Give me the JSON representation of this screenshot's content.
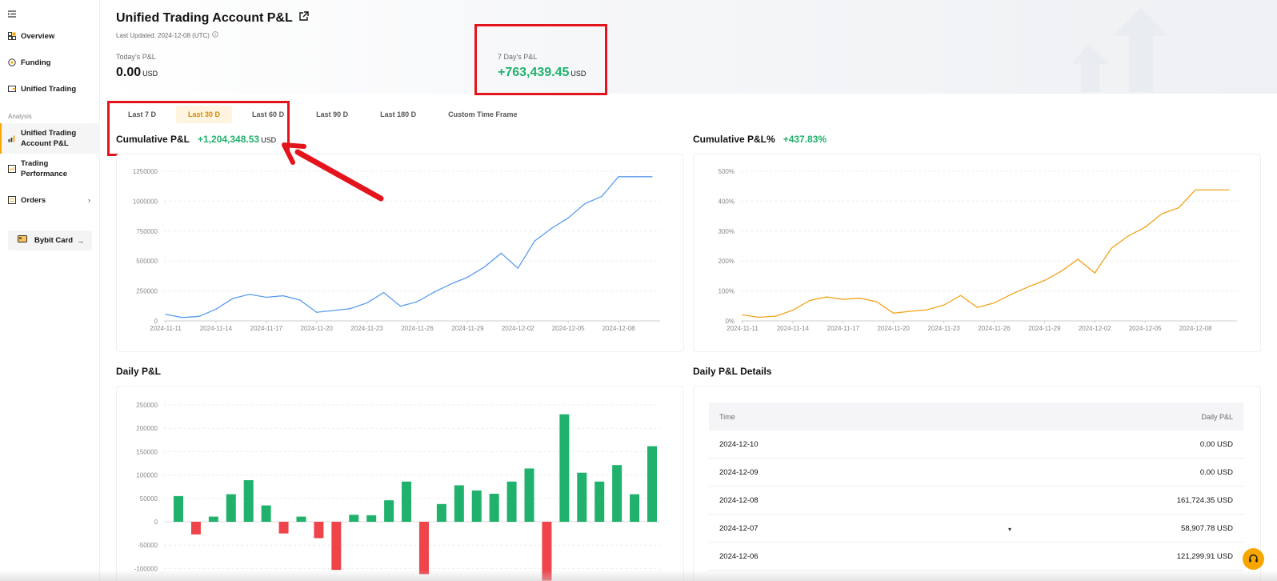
{
  "sidebar": {
    "items": [
      {
        "label": "Overview",
        "icon": "overview-icon"
      },
      {
        "label": "Funding",
        "icon": "coin-icon"
      },
      {
        "label": "Unified Trading",
        "icon": "wallet-icon"
      }
    ],
    "section_label": "Analysis",
    "analysis_items": [
      {
        "label_line1": "Unified Trading",
        "label_line2": "Account P&L",
        "icon": "bar-chart-icon",
        "active": true
      },
      {
        "label_line1": "Trading",
        "label_line2": "Performance",
        "icon": "performance-icon"
      },
      {
        "label_line1": "Orders",
        "label_line2": "",
        "icon": "orders-icon"
      }
    ],
    "card_label": "Bybit Card"
  },
  "header": {
    "title": "Unified Trading Account P&L",
    "last_updated": "Last Updated: 2024-12-08 (UTC)",
    "today_label": "Today's P&L",
    "today_value": "0.00",
    "today_unit": "USD",
    "week_label": "7 Day's P&L",
    "week_value": "+763,439.45",
    "week_unit": "USD"
  },
  "tabs": [
    "Last 7 D",
    "Last 30 D",
    "Last 60 D",
    "Last 90 D",
    "Last 180 D",
    "Custom Time Frame"
  ],
  "active_tab": "Last 30 D",
  "cumulative": {
    "title": "Cumulative P&L",
    "value": "+1,204,348.53",
    "unit": "USD"
  },
  "cumulative_pct": {
    "title": "Cumulative P&L%",
    "value": "+437.83%"
  },
  "daily_title": "Daily P&L",
  "details": {
    "title": "Daily P&L Details",
    "col_time": "Time",
    "col_pnl": "Daily P&L",
    "rows": [
      {
        "date": "2024-12-10",
        "pnl": "0.00 USD"
      },
      {
        "date": "2024-12-09",
        "pnl": "0.00 USD"
      },
      {
        "date": "2024-12-08",
        "pnl": "161,724.35 USD"
      },
      {
        "date": "2024-12-07",
        "pnl": "58,907.78 USD"
      },
      {
        "date": "2024-12-06",
        "pnl": "121,299.91 USD"
      }
    ]
  },
  "colors": {
    "accent": "#f7a600",
    "green": "#20b26c",
    "red": "#f0444b",
    "blue": "#5a9cf0",
    "orange": "#f2a41c",
    "annotation": "#e3141b"
  },
  "chart_data": [
    {
      "type": "line",
      "title": "Cumulative P&L",
      "x_ticks": [
        "2024-11-11",
        "2024-11-14",
        "2024-11-17",
        "2024-11-20",
        "2024-11-23",
        "2024-11-26",
        "2024-11-29",
        "2024-12-02",
        "2024-12-05",
        "2024-12-08"
      ],
      "y_ticks": [
        "0",
        "250000",
        "500000",
        "750000",
        "1000000",
        "1250000"
      ],
      "ylim": [
        0,
        1250000
      ],
      "x": [
        0,
        1,
        2,
        3,
        4,
        5,
        6,
        7,
        8,
        9,
        10,
        11,
        12,
        13,
        14,
        15,
        16,
        17,
        18,
        19,
        20,
        21,
        22,
        23,
        24,
        25,
        26,
        27,
        28,
        29
      ],
      "values": [
        55000,
        28000,
        38000,
        98000,
        187000,
        222000,
        197000,
        210000,
        175000,
        72000,
        87000,
        102000,
        150000,
        237000,
        123000,
        160000,
        240000,
        308000,
        365000,
        450000,
        566000,
        440000,
        668000,
        773000,
        860000,
        980000,
        1040000,
        1204348,
        1204348,
        1204348
      ],
      "grid": true,
      "color": "#5a9cf0"
    },
    {
      "type": "line",
      "title": "Cumulative P&L%",
      "x_ticks": [
        "2024-11-11",
        "2024-11-14",
        "2024-11-17",
        "2024-11-20",
        "2024-11-23",
        "2024-11-26",
        "2024-11-29",
        "2024-12-02",
        "2024-12-05",
        "2024-12-08"
      ],
      "y_ticks": [
        "0%",
        "100%",
        "200%",
        "300%",
        "400%",
        "500%"
      ],
      "ylim": [
        0,
        500
      ],
      "x": [
        0,
        1,
        2,
        3,
        4,
        5,
        6,
        7,
        8,
        9,
        10,
        11,
        12,
        13,
        14,
        15,
        16,
        17,
        18,
        19,
        20,
        21,
        22,
        23,
        24,
        25,
        26,
        27,
        28,
        29
      ],
      "values": [
        20,
        12,
        16,
        36,
        68,
        80,
        72,
        76,
        64,
        26,
        32,
        37,
        53,
        85,
        45,
        60,
        88,
        113,
        135,
        166,
        206,
        160,
        243,
        284,
        313,
        358,
        378,
        437.83,
        437.83,
        437.83
      ],
      "grid": true,
      "color": "#f2a41c"
    },
    {
      "type": "bar",
      "title": "Daily P&L",
      "y_ticks": [
        "-100000",
        "-50000",
        "0",
        "50000",
        "100000",
        "150000",
        "200000",
        "250000"
      ],
      "ylim": [
        -115000,
        250000
      ],
      "values": [
        55000,
        -27000,
        11000,
        59000,
        89000,
        35000,
        -25000,
        11000,
        -35000,
        -103000,
        15000,
        14000,
        46000,
        86000,
        -112000,
        38000,
        78000,
        67000,
        60000,
        86000,
        114000,
        -126000,
        230000,
        105000,
        86000,
        121300,
        58908,
        161724
      ],
      "grid": true
    }
  ]
}
